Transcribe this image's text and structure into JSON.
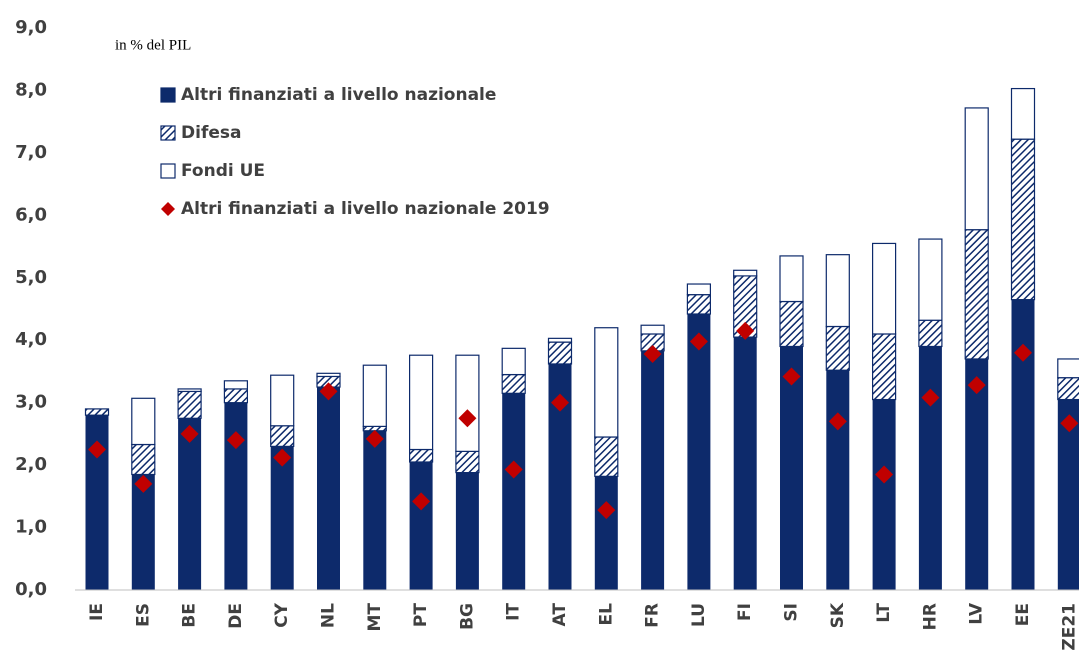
{
  "chart_data": {
    "type": "bar",
    "stacked": true,
    "annotation": "in % del PIL",
    "categories": [
      "IE",
      "ES",
      "BE",
      "DE",
      "CY",
      "NL",
      "MT",
      "PT",
      "BG",
      "IT",
      "AT",
      "EL",
      "FR",
      "LU",
      "FI",
      "SI",
      "SK",
      "LT",
      "HR",
      "LV",
      "EE",
      "ZE21"
    ],
    "series": [
      {
        "name": "Altri finanziati a livello nazionale",
        "color": "#0d2a6b",
        "fill": "solid",
        "values": [
          2.8,
          1.85,
          2.75,
          3.0,
          2.3,
          3.25,
          2.55,
          2.05,
          1.88,
          3.15,
          3.62,
          1.82,
          3.83,
          4.42,
          4.05,
          3.9,
          3.52,
          3.05,
          3.9,
          3.7,
          4.65,
          3.05
        ]
      },
      {
        "name": "Difesa",
        "color": "#0d2a6b",
        "fill": "hatch",
        "values": [
          0.1,
          0.48,
          0.43,
          0.22,
          0.33,
          0.17,
          0.07,
          0.2,
          0.34,
          0.3,
          0.35,
          0.63,
          0.27,
          0.31,
          0.98,
          0.72,
          0.7,
          1.05,
          0.42,
          2.07,
          2.57,
          0.35
        ]
      },
      {
        "name": "Fondi UE",
        "color": "#0d2a6b",
        "fill": "empty",
        "values": [
          0,
          0.74,
          0.04,
          0.13,
          0.81,
          0.05,
          0.98,
          1.51,
          1.54,
          0.42,
          0.06,
          1.75,
          0.14,
          0.17,
          0.09,
          0.73,
          1.15,
          1.45,
          1.3,
          1.95,
          0.81,
          0.3
        ]
      },
      {
        "name": "Altri finanziati a livello nazionale 2019",
        "color": "#c00000",
        "type": "scatter",
        "values": [
          2.25,
          1.7,
          2.5,
          2.4,
          2.12,
          3.18,
          2.42,
          1.42,
          2.75,
          1.93,
          3.0,
          1.28,
          3.78,
          3.98,
          4.15,
          3.42,
          2.7,
          1.85,
          3.08,
          3.28,
          3.8,
          2.67
        ]
      }
    ],
    "ylim": [
      0,
      9
    ],
    "yticks": [
      {
        "value": 0,
        "label": "0,0"
      },
      {
        "value": 1,
        "label": "1,0"
      },
      {
        "value": 2,
        "label": "2,0"
      },
      {
        "value": 3,
        "label": "3,0"
      },
      {
        "value": 4,
        "label": "4,0"
      },
      {
        "value": 5,
        "label": "5,0"
      },
      {
        "value": 6,
        "label": "6,0"
      },
      {
        "value": 7,
        "label": "7,0"
      },
      {
        "value": 8,
        "label": "8,0"
      },
      {
        "value": 9,
        "label": "9,0"
      }
    ],
    "grid": false,
    "legend": "upper left"
  }
}
